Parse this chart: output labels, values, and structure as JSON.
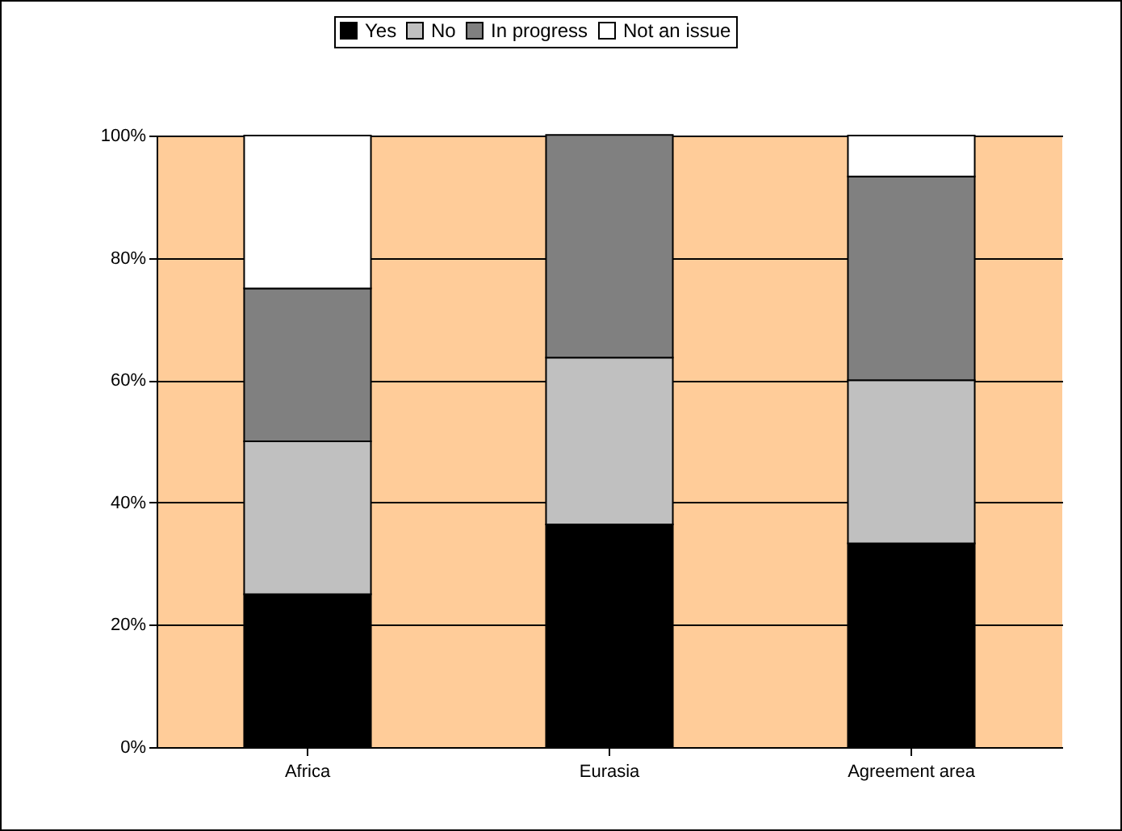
{
  "chart_data": {
    "type": "bar",
    "stacked": true,
    "categories": [
      "Africa",
      "Eurasia",
      "Agreement area"
    ],
    "series": [
      {
        "name": "Yes",
        "color": "#000000",
        "values": [
          25,
          36.4,
          33.3
        ]
      },
      {
        "name": "No",
        "color": "#c0c0c0",
        "values": [
          25,
          27.3,
          26.7
        ]
      },
      {
        "name": "In progress",
        "color": "#808080",
        "values": [
          25,
          36.4,
          33.3
        ]
      },
      {
        "name": "Not an issue",
        "color": "#ffffff",
        "values": [
          25,
          null,
          6.7
        ]
      }
    ],
    "ylim": [
      0,
      100
    ],
    "yticks": [
      {
        "value": 0,
        "label": "0%"
      },
      {
        "value": 20,
        "label": "20%"
      },
      {
        "value": 40,
        "label": "40%"
      },
      {
        "value": 60,
        "label": "60%"
      },
      {
        "value": 80,
        "label": "80%"
      },
      {
        "value": 100,
        "label": "100%"
      }
    ],
    "grid": "y",
    "legend": "top"
  }
}
